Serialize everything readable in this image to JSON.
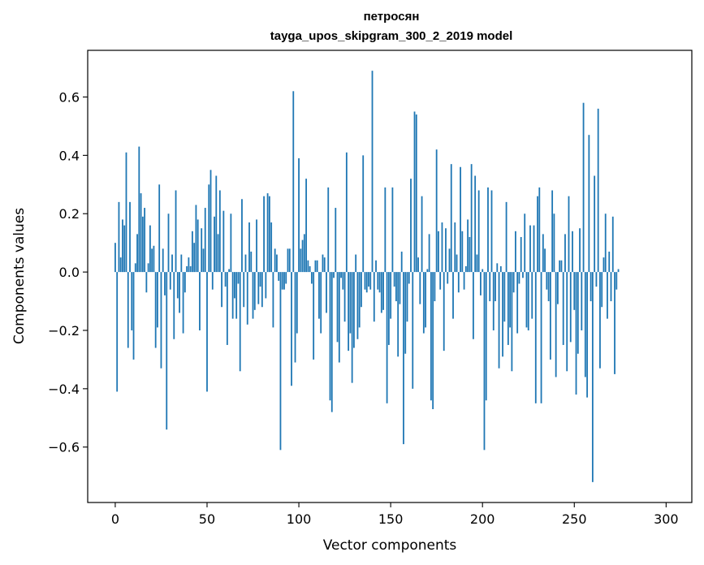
{
  "chart_data": {
    "type": "bar",
    "title": "петросян",
    "subtitle": "tayga_upos_skipgram_300_2_2019 model",
    "xlabel": "Vector components",
    "ylabel": "Components values",
    "xlim": [
      -15,
      314
    ],
    "ylim": [
      -0.79,
      0.76
    ],
    "xticks": [
      0,
      50,
      100,
      150,
      200,
      250,
      300
    ],
    "yticks": [
      -0.6,
      -0.4,
      -0.2,
      0.0,
      0.2,
      0.4,
      0.6
    ],
    "xtick_labels": [
      "0",
      "50",
      "100",
      "150",
      "200",
      "250",
      "300"
    ],
    "ytick_labels": [
      "−0.6",
      "−0.4",
      "−0.2",
      "0.0",
      "0.2",
      "0.4",
      "0.6"
    ],
    "bar_color": "#1f77b4",
    "grid": false,
    "values": [
      0.1,
      -0.41,
      0.24,
      0.05,
      0.18,
      0.16,
      0.41,
      -0.26,
      0.24,
      -0.2,
      -0.3,
      0.03,
      0.13,
      0.43,
      0.27,
      0.19,
      0.22,
      -0.07,
      0.03,
      0.16,
      0.08,
      0.09,
      -0.26,
      -0.19,
      0.3,
      -0.33,
      0.08,
      -0.08,
      -0.54,
      0.2,
      -0.06,
      0.06,
      -0.23,
      0.28,
      -0.09,
      -0.14,
      0.06,
      -0.21,
      -0.07,
      0.02,
      0.05,
      0.02,
      0.14,
      0.1,
      0.23,
      0.18,
      -0.2,
      0.15,
      0.08,
      0.22,
      -0.41,
      0.3,
      0.35,
      -0.06,
      0.19,
      0.33,
      0.13,
      0.28,
      -0.12,
      0.21,
      -0.05,
      -0.25,
      0.01,
      0.2,
      -0.16,
      -0.09,
      -0.16,
      -0.04,
      -0.34,
      0.25,
      -0.12,
      0.06,
      -0.18,
      0.17,
      0.07,
      -0.16,
      -0.13,
      0.18,
      -0.11,
      -0.05,
      -0.12,
      0.26,
      -0.09,
      0.27,
      0.26,
      0.17,
      -0.19,
      0.08,
      0.06,
      -0.03,
      -0.61,
      -0.06,
      -0.06,
      -0.04,
      0.08,
      0.08,
      -0.39,
      0.62,
      -0.31,
      -0.21,
      0.39,
      0.08,
      0.11,
      0.13,
      0.32,
      0.04,
      0.02,
      -0.04,
      -0.3,
      0.04,
      0.04,
      -0.16,
      -0.21,
      0.06,
      0.05,
      -0.14,
      0.29,
      -0.44,
      -0.48,
      -0.02,
      0.22,
      -0.24,
      -0.31,
      -0.02,
      -0.06,
      -0.17,
      0.41,
      -0.27,
      -0.21,
      -0.38,
      -0.26,
      0.06,
      -0.23,
      -0.19,
      -0.12,
      0.4,
      -0.06,
      -0.07,
      -0.05,
      -0.06,
      0.69,
      -0.17,
      0.04,
      -0.06,
      -0.07,
      -0.14,
      -0.13,
      0.29,
      -0.45,
      -0.25,
      -0.16,
      0.29,
      -0.05,
      -0.1,
      -0.29,
      -0.11,
      0.07,
      -0.59,
      -0.28,
      -0.17,
      -0.04,
      0.32,
      -0.4,
      0.55,
      0.54,
      0.05,
      -0.11,
      0.26,
      -0.21,
      -0.19,
      0.01,
      0.13,
      -0.44,
      -0.47,
      -0.1,
      0.42,
      0.14,
      -0.06,
      0.17,
      -0.27,
      0.15,
      -0.04,
      0.08,
      0.37,
      -0.16,
      0.17,
      0.06,
      -0.07,
      0.36,
      0.14,
      -0.06,
      0.02,
      0.18,
      0.12,
      0.37,
      -0.23,
      0.33,
      0.06,
      0.28,
      -0.08,
      0.01,
      -0.61,
      -0.44,
      0.29,
      -0.1,
      0.28,
      -0.2,
      -0.1,
      0.03,
      -0.33,
      0.02,
      -0.29,
      -0.17,
      0.24,
      -0.25,
      -0.19,
      -0.34,
      -0.07,
      0.14,
      -0.21,
      -0.04,
      0.12,
      -0.02,
      0.2,
      -0.19,
      -0.2,
      0.16,
      -0.16,
      0.16,
      -0.45,
      0.26,
      0.29,
      -0.45,
      0.13,
      0.08,
      -0.06,
      -0.1,
      -0.3,
      0.28,
      0.2,
      -0.36,
      -0.11,
      0.04,
      0.04,
      -0.25,
      0.13,
      -0.34,
      0.26,
      -0.24,
      0.14,
      -0.13,
      -0.42,
      -0.28,
      0.15,
      -0.2,
      0.58,
      -0.36,
      -0.43,
      0.47,
      -0.1,
      -0.72,
      0.33,
      -0.05,
      0.56,
      -0.33,
      -0.12,
      0.05,
      0.2,
      -0.16,
      0.07,
      -0.1,
      0.19,
      -0.35,
      -0.06,
      0.01
    ]
  }
}
